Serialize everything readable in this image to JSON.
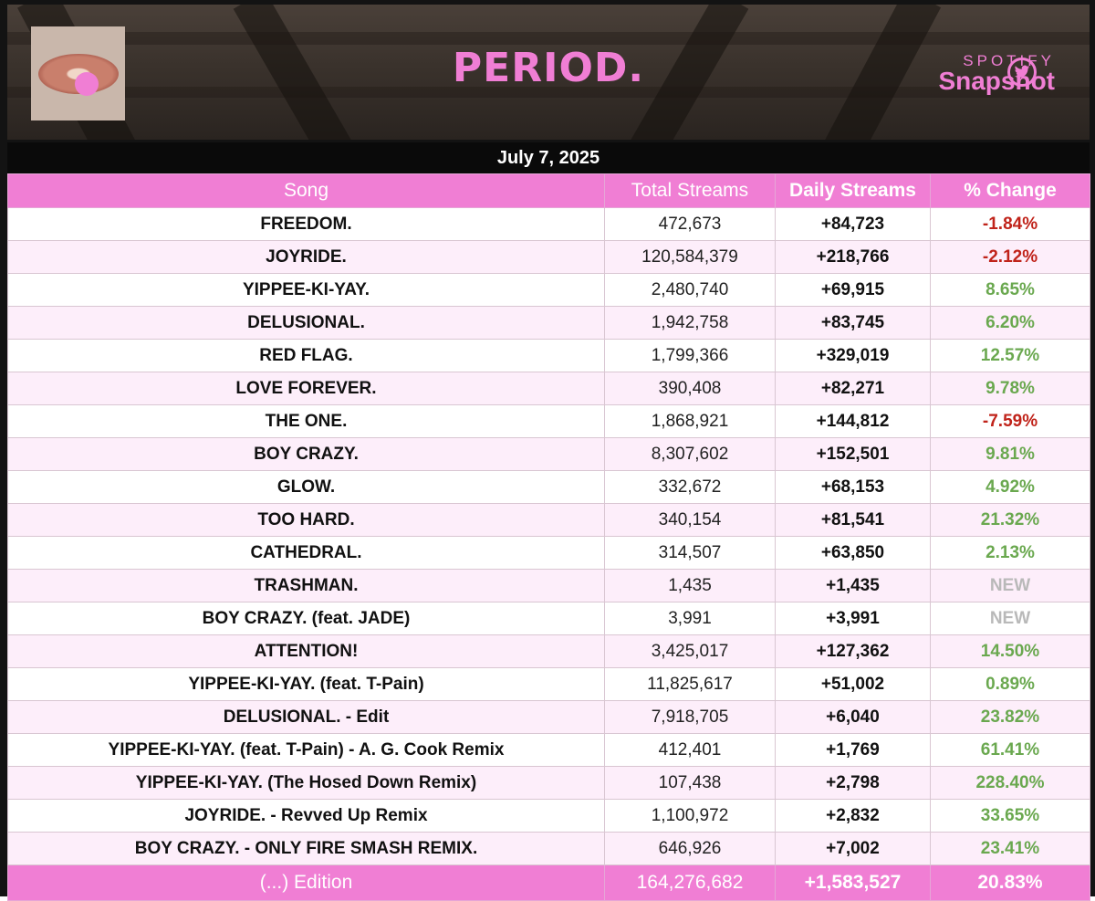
{
  "header": {
    "album_title": "PERIOD.",
    "brand_top": "SPOTIFY",
    "brand_bottom": "Snapshot",
    "date": "July 7, 2025"
  },
  "icons": {
    "social": "twitter-bird-icon",
    "cover": "album-cover-lips-pill"
  },
  "colors": {
    "accent": "#f07ed4",
    "negative": "#c0231a",
    "positive": "#6aa84f",
    "new": "#b9b9b9"
  },
  "table": {
    "columns": [
      "Song",
      "Total Streams",
      "Daily Streams",
      "% Change"
    ],
    "rows": [
      {
        "song": "FREEDOM.",
        "total": "472,673",
        "daily": "+84,723",
        "change": "-1.84%",
        "trend": "neg"
      },
      {
        "song": "JOYRIDE.",
        "total": "120,584,379",
        "daily": "+218,766",
        "change": "-2.12%",
        "trend": "neg"
      },
      {
        "song": "YIPPEE-KI-YAY.",
        "total": "2,480,740",
        "daily": "+69,915",
        "change": "8.65%",
        "trend": "pos"
      },
      {
        "song": "DELUSIONAL.",
        "total": "1,942,758",
        "daily": "+83,745",
        "change": "6.20%",
        "trend": "pos"
      },
      {
        "song": "RED FLAG.",
        "total": "1,799,366",
        "daily": "+329,019",
        "change": "12.57%",
        "trend": "pos"
      },
      {
        "song": "LOVE FOREVER.",
        "total": "390,408",
        "daily": "+82,271",
        "change": "9.78%",
        "trend": "pos"
      },
      {
        "song": "THE ONE.",
        "total": "1,868,921",
        "daily": "+144,812",
        "change": "-7.59%",
        "trend": "neg"
      },
      {
        "song": "BOY CRAZY.",
        "total": "8,307,602",
        "daily": "+152,501",
        "change": "9.81%",
        "trend": "pos"
      },
      {
        "song": "GLOW.",
        "total": "332,672",
        "daily": "+68,153",
        "change": "4.92%",
        "trend": "pos"
      },
      {
        "song": "TOO HARD.",
        "total": "340,154",
        "daily": "+81,541",
        "change": "21.32%",
        "trend": "pos"
      },
      {
        "song": "CATHEDRAL.",
        "total": "314,507",
        "daily": "+63,850",
        "change": "2.13%",
        "trend": "pos"
      },
      {
        "song": "TRASHMAN.",
        "total": "1,435",
        "daily": "+1,435",
        "change": "NEW",
        "trend": "new"
      },
      {
        "song": "BOY CRAZY. (feat. JADE)",
        "total": "3,991",
        "daily": "+3,991",
        "change": "NEW",
        "trend": "new"
      },
      {
        "song": "ATTENTION!",
        "total": "3,425,017",
        "daily": "+127,362",
        "change": "14.50%",
        "trend": "pos"
      },
      {
        "song": "YIPPEE-KI-YAY. (feat. T-Pain)",
        "total": "11,825,617",
        "daily": "+51,002",
        "change": "0.89%",
        "trend": "pos"
      },
      {
        "song": "DELUSIONAL. - Edit",
        "total": "7,918,705",
        "daily": "+6,040",
        "change": "23.82%",
        "trend": "pos"
      },
      {
        "song": "YIPPEE-KI-YAY. (feat. T-Pain) - A. G. Cook Remix",
        "total": "412,401",
        "daily": "+1,769",
        "change": "61.41%",
        "trend": "pos"
      },
      {
        "song": "YIPPEE-KI-YAY. (The Hosed Down Remix)",
        "total": "107,438",
        "daily": "+2,798",
        "change": "228.40%",
        "trend": "pos"
      },
      {
        "song": "JOYRIDE. - Revved Up Remix",
        "total": "1,100,972",
        "daily": "+2,832",
        "change": "33.65%",
        "trend": "pos"
      },
      {
        "song": "BOY CRAZY. - ONLY FIRE SMASH REMIX.",
        "total": "646,926",
        "daily": "+7,002",
        "change": "23.41%",
        "trend": "pos"
      }
    ],
    "footer": {
      "song": "(...) Edition",
      "total": "164,276,682",
      "daily": "+1,583,527",
      "change": "20.83%"
    }
  }
}
